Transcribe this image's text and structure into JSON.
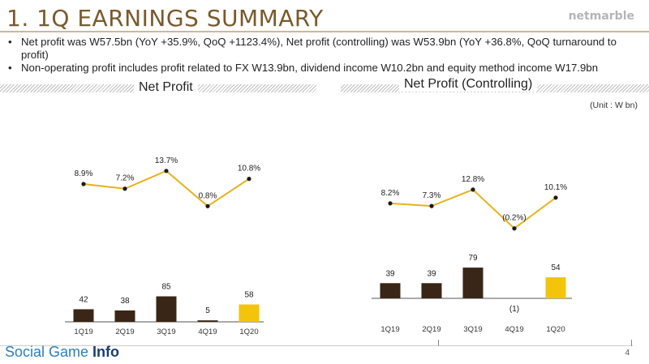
{
  "title": "1. 1Q EARNINGS SUMMARY",
  "logo": "netmarble",
  "bullets": [
    "Net profit was W57.5bn (YoY +35.9%, QoQ +1123.4%), Net profit (controlling) was W53.9bn (YoY +36.8%, QoQ turnaround to profit)",
    "Non-operating profit includes profit related to FX W13.9bn, dividend income W10.2bn and equity method income W17.9bn"
  ],
  "unit_label": "(Unit : W bn)",
  "page_number": "4",
  "watermark": {
    "part1": "Social Game ",
    "part2": "Info"
  },
  "colors": {
    "line": "#e8b21c",
    "bar_dark": "#3a2616",
    "bar_highlight": "#f2c40c",
    "title": "#7a5a2a"
  },
  "chart_data": [
    {
      "type": "bar",
      "title": "Net Profit",
      "categories": [
        "1Q19",
        "2Q19",
        "3Q19",
        "4Q19",
        "1Q20"
      ],
      "values": [
        42,
        38,
        85,
        5,
        58
      ],
      "value_labels": [
        "42",
        "38",
        "85",
        "5",
        "58"
      ],
      "highlight_index": 4,
      "margin_series": {
        "type": "line",
        "values": [
          8.9,
          7.2,
          13.7,
          0.8,
          10.8
        ],
        "labels": [
          "8.9%",
          "7.2%",
          "13.7%",
          "0.8%",
          "10.8%"
        ]
      }
    },
    {
      "type": "bar",
      "title": "Net Profit (Controlling)",
      "categories": [
        "1Q19",
        "2Q19",
        "3Q19",
        "4Q19",
        "1Q20"
      ],
      "values": [
        39,
        39,
        79,
        -1,
        54
      ],
      "value_labels": [
        "39",
        "39",
        "79",
        "(1)",
        "54"
      ],
      "highlight_index": 4,
      "margin_series": {
        "type": "line",
        "values": [
          8.2,
          7.3,
          12.8,
          -0.2,
          10.1
        ],
        "labels": [
          "8.2%",
          "7.3%",
          "12.8%",
          "(0.2%)",
          "10.1%"
        ]
      }
    }
  ]
}
